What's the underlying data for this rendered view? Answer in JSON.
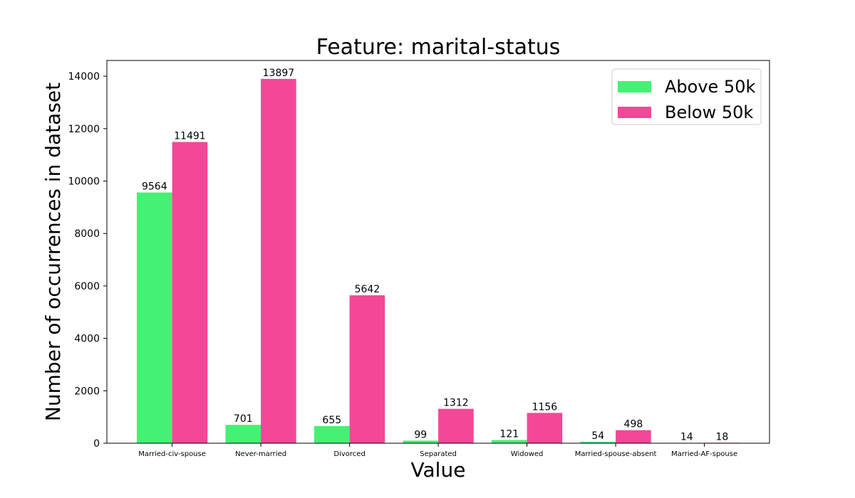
{
  "chart_data": {
    "type": "bar",
    "title": "Feature: marital-status",
    "xlabel": "Value",
    "ylabel": "Number of occurrences in dataset",
    "categories": [
      "Married-civ-spouse",
      "Never-married",
      "Divorced",
      "Separated",
      "Widowed",
      "Married-spouse-absent",
      "Married-AF-spouse"
    ],
    "series": [
      {
        "name": "Above 50k",
        "color": "#44f175",
        "values": [
          9564,
          701,
          655,
          99,
          121,
          54,
          14
        ]
      },
      {
        "name": "Below 50k",
        "color": "#f44798",
        "values": [
          11491,
          13897,
          5642,
          1312,
          1156,
          498,
          18
        ]
      }
    ],
    "ylim": [
      0,
      14600
    ],
    "yticks": [
      0,
      2000,
      4000,
      6000,
      8000,
      10000,
      12000,
      14000
    ],
    "data_labels": true,
    "grid": false,
    "legend_position": "top-right"
  }
}
